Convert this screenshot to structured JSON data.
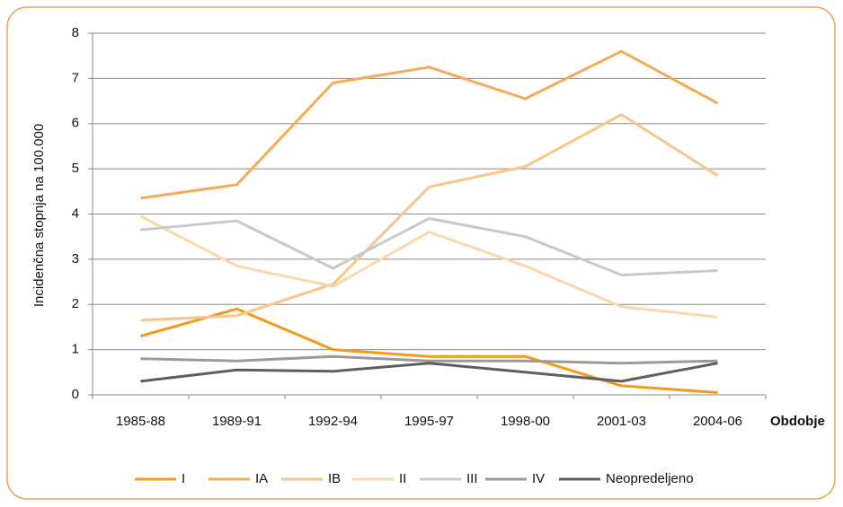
{
  "chart_data": {
    "type": "line",
    "y_label": "Incidenčna stopnja na 100.000",
    "x_label": "Obdobje",
    "categories": [
      "1985-88",
      "1989-91",
      "1992-94",
      "1995-97",
      "1998-00",
      "2001-03",
      "2004-06"
    ],
    "series": [
      {
        "name": "I",
        "color": "#f29a1c",
        "values": [
          1.3,
          1.9,
          1.0,
          0.85,
          0.85,
          0.2,
          0.05
        ]
      },
      {
        "name": "IA",
        "color": "#f5ab55",
        "values": [
          4.35,
          4.65,
          6.9,
          7.25,
          6.55,
          7.6,
          6.45
        ]
      },
      {
        "name": "IB",
        "color": "#f8c686",
        "values": [
          1.65,
          1.75,
          2.45,
          4.6,
          5.05,
          6.2,
          4.85
        ]
      },
      {
        "name": "II",
        "color": "#fad8aa",
        "values": [
          3.95,
          2.85,
          2.4,
          3.6,
          2.85,
          1.95,
          1.72
        ]
      },
      {
        "name": "III",
        "color": "#c9c9c9",
        "values": [
          3.65,
          3.85,
          2.8,
          3.9,
          3.5,
          2.65,
          2.75
        ]
      },
      {
        "name": "IV",
        "color": "#9a9a9a",
        "values": [
          0.8,
          0.75,
          0.85,
          0.75,
          0.75,
          0.7,
          0.75
        ]
      },
      {
        "name": "Neopredeljeno",
        "color": "#5e5e5e",
        "values": [
          0.3,
          0.55,
          0.52,
          0.7,
          0.5,
          0.3,
          0.7
        ]
      }
    ],
    "ylim": [
      0,
      8
    ],
    "yticks": [
      0,
      1,
      2,
      3,
      4,
      5,
      6,
      7,
      8
    ],
    "grid": true,
    "legend": "bottom"
  }
}
